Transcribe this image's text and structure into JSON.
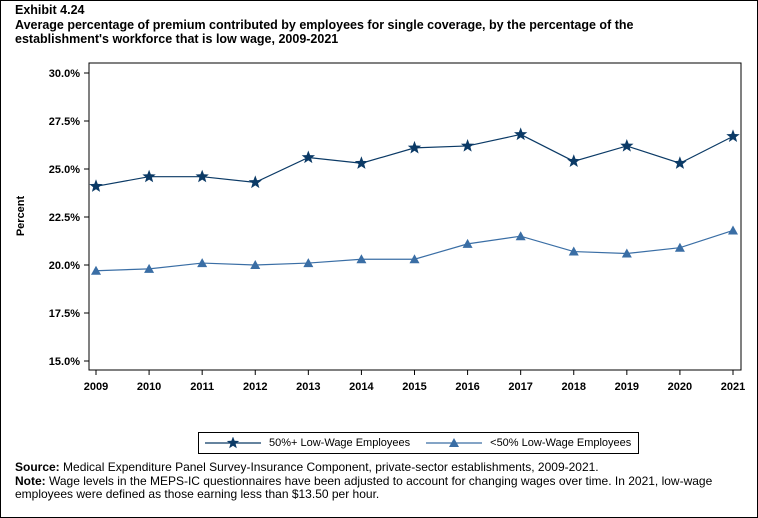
{
  "exhibit": "Exhibit 4.24",
  "title": "Average percentage of premium contributed by employees for single coverage, by the percentage of the establishment's workforce that is low wage, 2009-2021",
  "chart_data": {
    "type": "line",
    "xlabel": "",
    "ylabel": "Percent",
    "ylim": [
      15,
      30
    ],
    "yticks": [
      "15.0%",
      "17.5%",
      "20.0%",
      "22.5%",
      "25.0%",
      "27.5%",
      "30.0%"
    ],
    "ytick_values": [
      15,
      17.5,
      20,
      22.5,
      25,
      27.5,
      30
    ],
    "x": [
      "2009",
      "2010",
      "2011",
      "2012",
      "2013",
      "2014",
      "2015",
      "2016",
      "2017",
      "2018",
      "2019",
      "2020",
      "2021"
    ],
    "grid": false,
    "legend_position": "bottom",
    "series": [
      {
        "name": "50%+ Low-Wage Employees",
        "marker": "star",
        "color": "#0b3a66",
        "values": [
          24.1,
          24.6,
          24.6,
          24.3,
          25.6,
          25.3,
          26.1,
          26.2,
          26.8,
          25.4,
          26.2,
          25.3,
          26.7
        ]
      },
      {
        "name": "<50% Low-Wage Employees",
        "marker": "triangle",
        "color": "#3a6ea5",
        "values": [
          19.7,
          19.8,
          20.1,
          20.0,
          20.1,
          20.3,
          20.3,
          21.1,
          21.5,
          20.7,
          20.6,
          20.9,
          21.8
        ]
      }
    ]
  },
  "notes": {
    "source_label": "Source:",
    "source_text": " Medical Expenditure Panel Survey-Insurance Component, private-sector establishments, 2009-2021.",
    "note_label": "Note:",
    "note_text": " Wage levels in the MEPS-IC questionnaires have been adjusted to account for changing wages over time.  In 2021, low-wage employees were defined as those earning less than $13.50 per hour."
  }
}
